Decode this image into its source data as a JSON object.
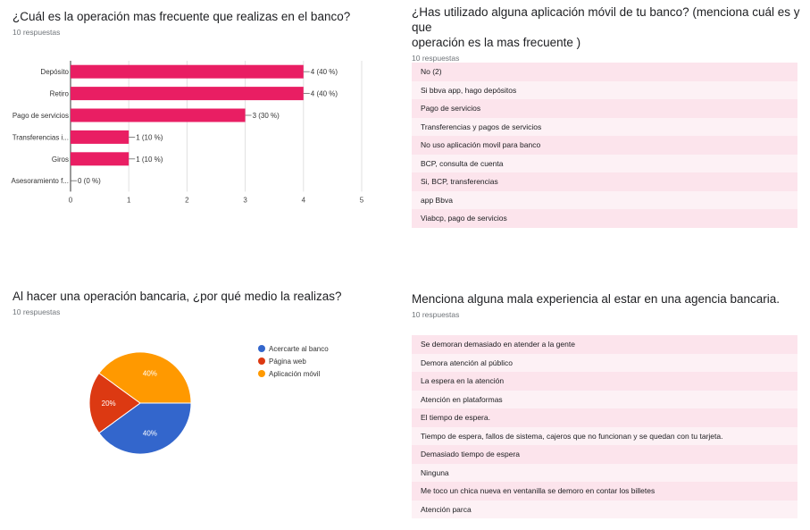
{
  "q1": {
    "title": "¿Cuál es la operación mas frecuente que realizas en el banco?",
    "responses": "10 respuestas"
  },
  "q2": {
    "title_line1": "¿Has utilizado alguna aplicación móvil de tu banco? (menciona cuál es y que",
    "title_line2": "operación es la mas frecuente )",
    "responses": "10 respuestas",
    "items": [
      "No (2)",
      "Si bbva app, hago depósitos",
      "Pago de servicios",
      "Transferencias y pagos de servicios",
      "No uso aplicación movil para banco",
      "BCP, consulta de cuenta",
      "Si, BCP, transferencias",
      "app Bbva",
      "Viabcp, pago de servicios"
    ]
  },
  "q3": {
    "title": "Al hacer una operación bancaria, ¿por qué medio la realizas?",
    "responses": "10 respuestas"
  },
  "q4": {
    "title": "Menciona alguna mala experiencia al estar en una agencia bancaria.",
    "responses": "10 respuestas",
    "items": [
      "Se demoran demasiado en atender a la gente",
      "Demora atención al público",
      "La espera en la atención",
      "Atención en plataformas",
      "El tiempo de espera.",
      "Tiempo de espera, fallos de sistema, cajeros que no funcionan y se quedan con tu tarjeta.",
      "Demasiado tiempo de espera",
      "Ninguna",
      "Me toco un chica nueva en ventanilla se demoro en contar los billetes",
      "Atención parca"
    ]
  },
  "chart_data": [
    {
      "type": "bar",
      "orientation": "horizontal",
      "categories": [
        "Depósito",
        "Retiro",
        "Pago de servicios",
        "Transferencias i...",
        "Giros",
        "Asesoramiento f..."
      ],
      "values": [
        4,
        4,
        3,
        1,
        1,
        0
      ],
      "data_labels": [
        "4 (40 %)",
        "4 (40 %)",
        "3 (30 %)",
        "1 (10 %)",
        "1 (10 %)",
        "0 (0 %)"
      ],
      "xlim": [
        0,
        5
      ],
      "xticks": [
        "0",
        "1",
        "2",
        "3",
        "4",
        "5"
      ],
      "grid": true,
      "color": "#e91e63"
    },
    {
      "type": "pie",
      "labels": [
        "Acercarte al banco",
        "Página web",
        "Aplicación móvil"
      ],
      "values": [
        40,
        20,
        40
      ],
      "data_labels": [
        "40%",
        "20%",
        "40%"
      ],
      "colors": [
        "#3366cc",
        "#dc3912",
        "#ff9900"
      ],
      "legend": "right"
    }
  ]
}
